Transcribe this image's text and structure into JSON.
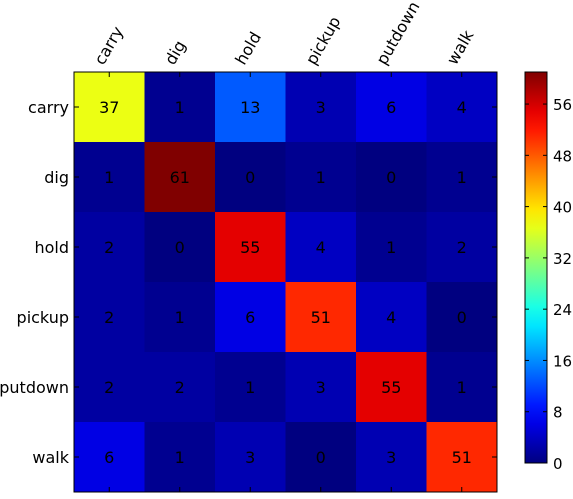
{
  "chart_data": {
    "type": "heatmap",
    "title": "",
    "xlabel": "",
    "ylabel": "",
    "x_categories": [
      "carry",
      "dig",
      "hold",
      "pickup",
      "putdown",
      "walk"
    ],
    "y_categories": [
      "carry",
      "dig",
      "hold",
      "pickup",
      "putdown",
      "walk"
    ],
    "values": [
      [
        37,
        1,
        13,
        3,
        6,
        4
      ],
      [
        1,
        61,
        0,
        1,
        0,
        1
      ],
      [
        2,
        0,
        55,
        4,
        1,
        2
      ],
      [
        2,
        1,
        6,
        51,
        4,
        0
      ],
      [
        2,
        2,
        1,
        3,
        55,
        1
      ],
      [
        6,
        1,
        3,
        0,
        3,
        51
      ]
    ],
    "colormap": "jet",
    "value_range": [
      0,
      61
    ],
    "colorbar": {
      "ticks": [
        0,
        8,
        16,
        24,
        32,
        40,
        48,
        56
      ],
      "tick_labels": [
        "0",
        "8",
        "16",
        "24",
        "32",
        "40",
        "48",
        "56"
      ],
      "position": "right"
    },
    "x_tick_rotation_deg": 60,
    "grid": false,
    "legend": "none"
  }
}
